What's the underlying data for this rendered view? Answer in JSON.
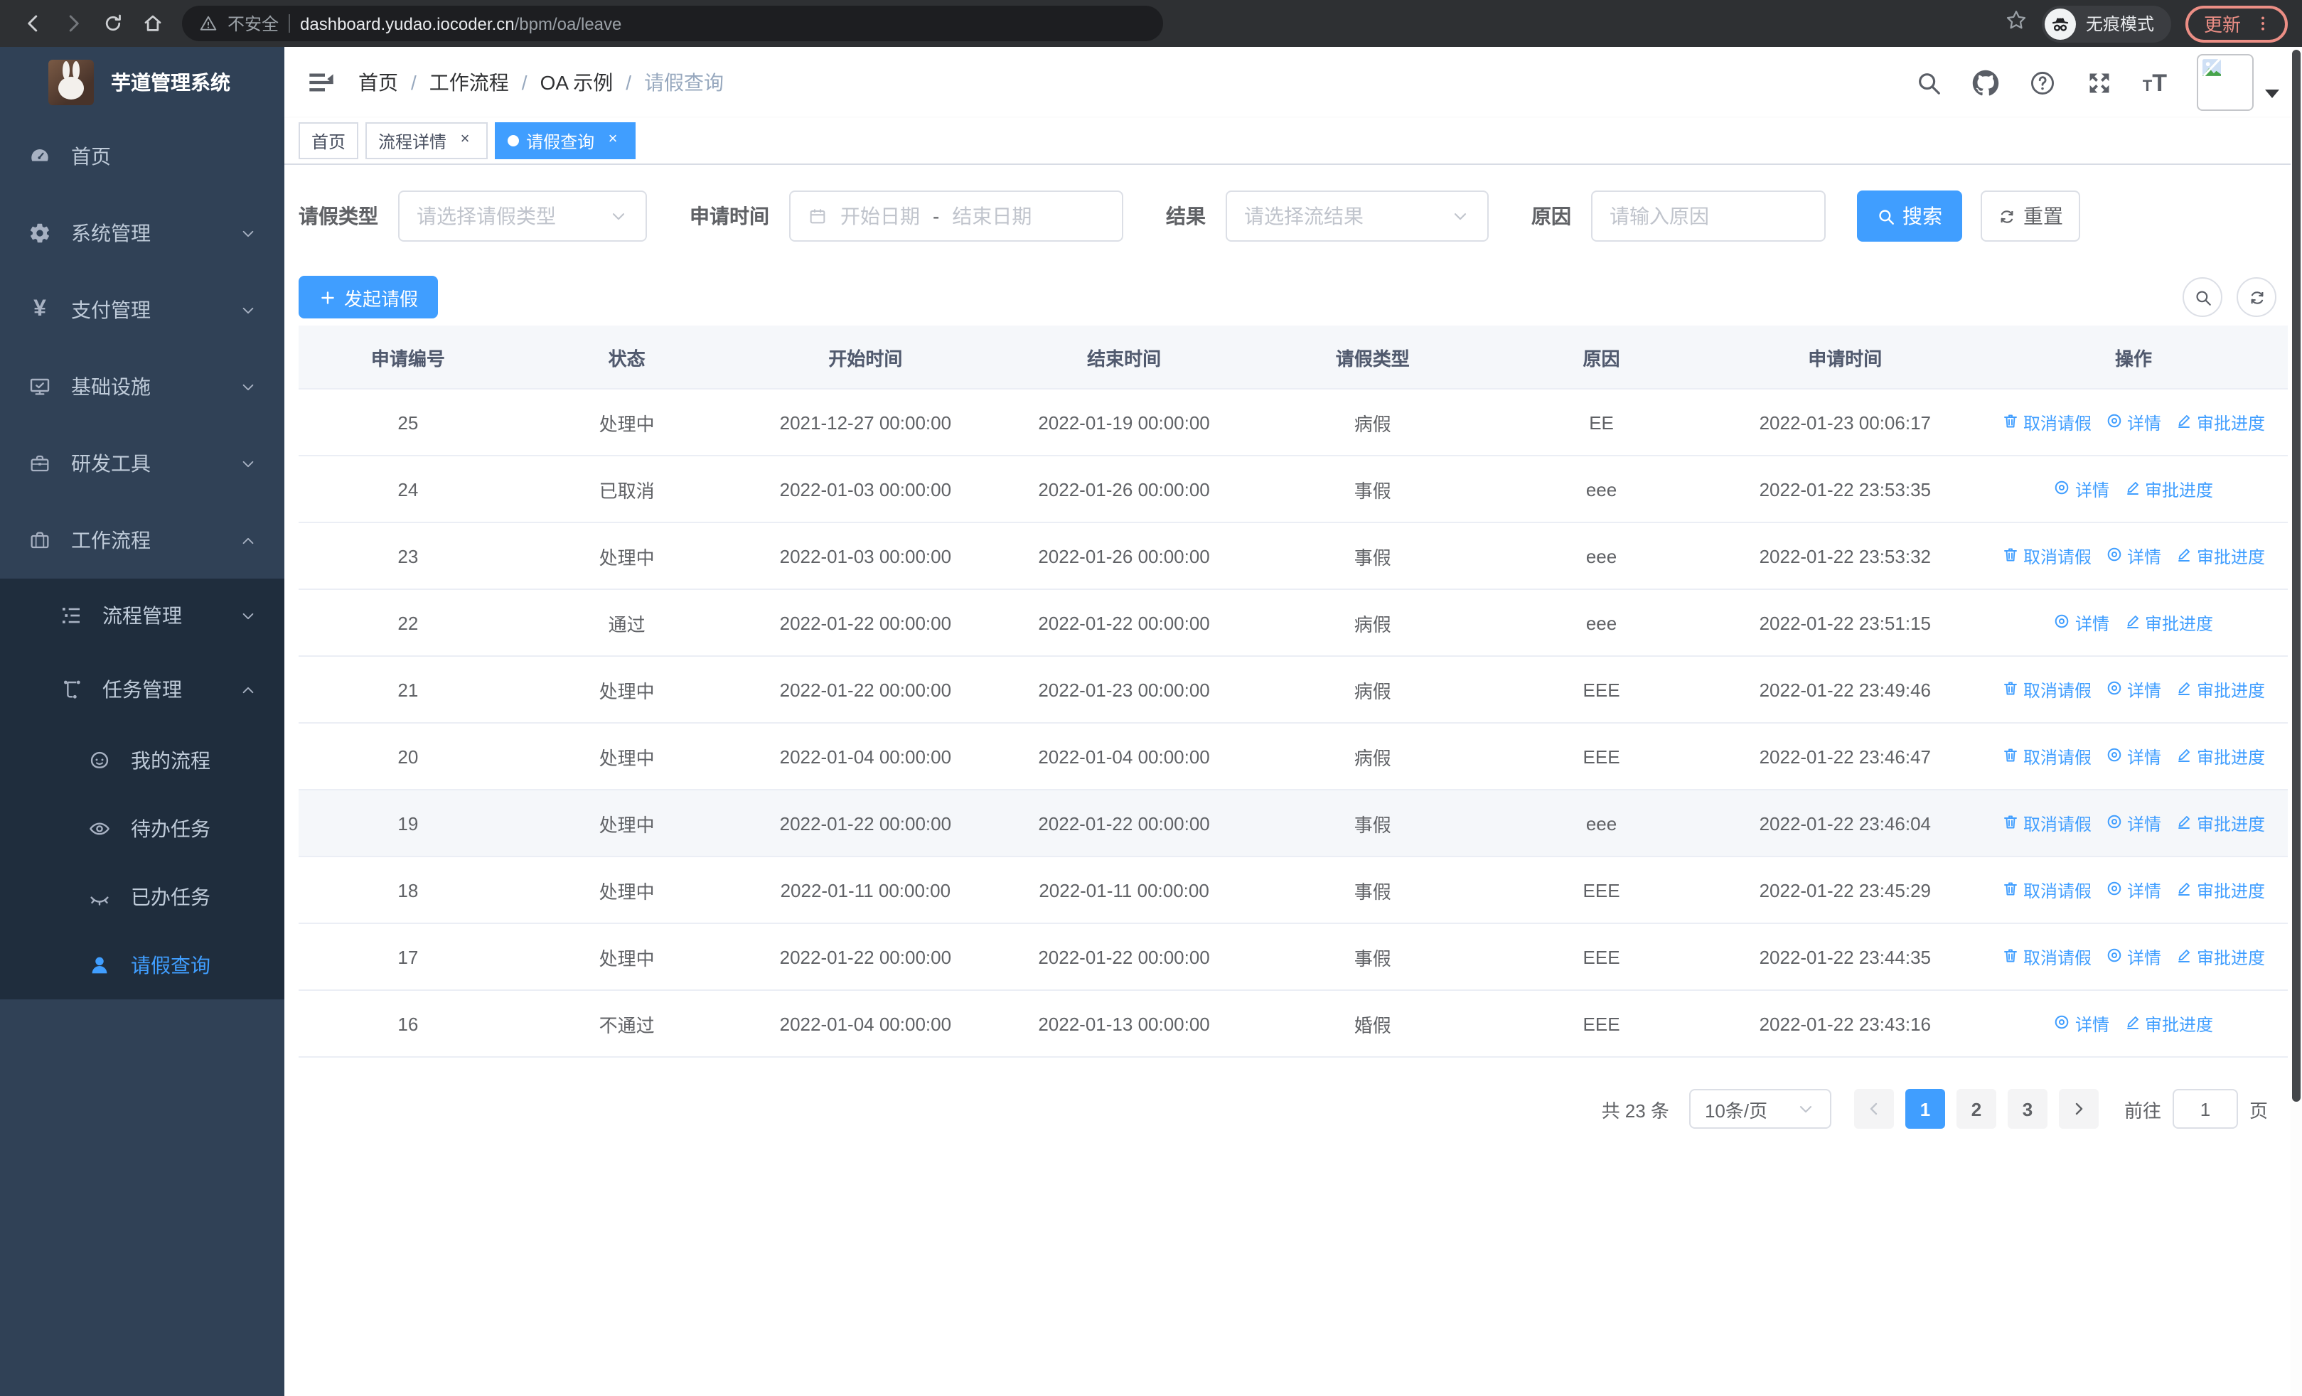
{
  "colors": {
    "accent": "#409eff",
    "sidebar_bg": "#304156",
    "submenu_bg": "#1f2d3d",
    "sidebar_text": "#bfcbd9",
    "table_header_bg": "#f5f7fa",
    "table_border": "#ebeef5",
    "update_accent": "#ec8e85"
  },
  "browser": {
    "security_label": "不安全",
    "url_domain": "dashboard.yudao.iocoder.cn",
    "url_path": "/bpm/oa/leave",
    "incognito_label": "无痕模式",
    "update_label": "更新"
  },
  "sidebar": {
    "title": "芋道管理系统",
    "items": [
      {
        "key": "home",
        "label": "首页",
        "icon": "dashboard-icon",
        "level": 1
      },
      {
        "key": "system",
        "label": "系统管理",
        "icon": "gear-icon",
        "level": 1,
        "arrow": "down"
      },
      {
        "key": "payment",
        "label": "支付管理",
        "icon": "yen-icon",
        "level": 1,
        "arrow": "down"
      },
      {
        "key": "infra",
        "label": "基础设施",
        "icon": "monitor-icon",
        "level": 1,
        "arrow": "down"
      },
      {
        "key": "devtools",
        "label": "研发工具",
        "icon": "toolbox-icon",
        "level": 1,
        "arrow": "down"
      },
      {
        "key": "workflow",
        "label": "工作流程",
        "icon": "briefcase-icon",
        "level": 1,
        "arrow": "up"
      },
      {
        "key": "process-mgmt",
        "label": "流程管理",
        "icon": "tree-icon",
        "level": 2,
        "arrow": "down"
      },
      {
        "key": "task-mgmt",
        "label": "任务管理",
        "icon": "flow-icon",
        "level": 2,
        "arrow": "up"
      },
      {
        "key": "my-process",
        "label": "我的流程",
        "icon": "face-icon",
        "level": 3
      },
      {
        "key": "todo-task",
        "label": "待办任务",
        "icon": "eye-open-icon",
        "level": 3
      },
      {
        "key": "done-task",
        "label": "已办任务",
        "icon": "eye-closed-icon",
        "level": 3
      },
      {
        "key": "leave-query",
        "label": "请假查询",
        "icon": "user-icon",
        "level": 3,
        "active": true
      }
    ]
  },
  "navbar": {
    "breadcrumb": [
      "首页",
      "工作流程",
      "OA 示例",
      "请假查询"
    ]
  },
  "tabs": [
    {
      "key": "home",
      "label": "首页",
      "closable": false,
      "active": false
    },
    {
      "key": "process-detail",
      "label": "流程详情",
      "closable": true,
      "active": false
    },
    {
      "key": "leave-query",
      "label": "请假查询",
      "closable": true,
      "active": true
    }
  ],
  "filters": {
    "leave_type": {
      "label": "请假类型",
      "placeholder": "请选择请假类型"
    },
    "apply_time": {
      "label": "申请时间",
      "start_placeholder": "开始日期",
      "separator": "-",
      "end_placeholder": "结束日期"
    },
    "result": {
      "label": "结果",
      "placeholder": "请选择流结果"
    },
    "reason": {
      "label": "原因",
      "placeholder": "请输入原因"
    },
    "search_label": "搜索",
    "reset_label": "重置"
  },
  "toolbar": {
    "create_label": "发起请假"
  },
  "table": {
    "headers": [
      "申请编号",
      "状态",
      "开始时间",
      "结束时间",
      "请假类型",
      "原因",
      "申请时间",
      "操作"
    ],
    "action_labels": {
      "cancel": "取消请假",
      "detail": "详情",
      "progress": "审批进度"
    },
    "rows": [
      {
        "id": "25",
        "status": "处理中",
        "start_time": "2021-12-27 00:00:00",
        "end_time": "2022-01-19 00:00:00",
        "leave_type": "病假",
        "reason": "EE",
        "apply_time": "2022-01-23 00:06:17",
        "actions": [
          "cancel",
          "detail",
          "progress"
        ],
        "hover": false
      },
      {
        "id": "24",
        "status": "已取消",
        "start_time": "2022-01-03 00:00:00",
        "end_time": "2022-01-26 00:00:00",
        "leave_type": "事假",
        "reason": "eee",
        "apply_time": "2022-01-22 23:53:35",
        "actions": [
          "detail",
          "progress"
        ],
        "hover": false
      },
      {
        "id": "23",
        "status": "处理中",
        "start_time": "2022-01-03 00:00:00",
        "end_time": "2022-01-26 00:00:00",
        "leave_type": "事假",
        "reason": "eee",
        "apply_time": "2022-01-22 23:53:32",
        "actions": [
          "cancel",
          "detail",
          "progress"
        ],
        "hover": false
      },
      {
        "id": "22",
        "status": "通过",
        "start_time": "2022-01-22 00:00:00",
        "end_time": "2022-01-22 00:00:00",
        "leave_type": "病假",
        "reason": "eee",
        "apply_time": "2022-01-22 23:51:15",
        "actions": [
          "detail",
          "progress"
        ],
        "hover": false
      },
      {
        "id": "21",
        "status": "处理中",
        "start_time": "2022-01-22 00:00:00",
        "end_time": "2022-01-23 00:00:00",
        "leave_type": "病假",
        "reason": "EEE",
        "apply_time": "2022-01-22 23:49:46",
        "actions": [
          "cancel",
          "detail",
          "progress"
        ],
        "hover": false
      },
      {
        "id": "20",
        "status": "处理中",
        "start_time": "2022-01-04 00:00:00",
        "end_time": "2022-01-04 00:00:00",
        "leave_type": "病假",
        "reason": "EEE",
        "apply_time": "2022-01-22 23:46:47",
        "actions": [
          "cancel",
          "detail",
          "progress"
        ],
        "hover": false
      },
      {
        "id": "19",
        "status": "处理中",
        "start_time": "2022-01-22 00:00:00",
        "end_time": "2022-01-22 00:00:00",
        "leave_type": "事假",
        "reason": "eee",
        "apply_time": "2022-01-22 23:46:04",
        "actions": [
          "cancel",
          "detail",
          "progress"
        ],
        "hover": true
      },
      {
        "id": "18",
        "status": "处理中",
        "start_time": "2022-01-11 00:00:00",
        "end_time": "2022-01-11 00:00:00",
        "leave_type": "事假",
        "reason": "EEE",
        "apply_time": "2022-01-22 23:45:29",
        "actions": [
          "cancel",
          "detail",
          "progress"
        ],
        "hover": false
      },
      {
        "id": "17",
        "status": "处理中",
        "start_time": "2022-01-22 00:00:00",
        "end_time": "2022-01-22 00:00:00",
        "leave_type": "事假",
        "reason": "EEE",
        "apply_time": "2022-01-22 23:44:35",
        "actions": [
          "cancel",
          "detail",
          "progress"
        ],
        "hover": false
      },
      {
        "id": "16",
        "status": "不通过",
        "start_time": "2022-01-04 00:00:00",
        "end_time": "2022-01-13 00:00:00",
        "leave_type": "婚假",
        "reason": "EEE",
        "apply_time": "2022-01-22 23:43:16",
        "actions": [
          "detail",
          "progress"
        ],
        "hover": false
      }
    ]
  },
  "pagination": {
    "total_label": "共 23 条",
    "page_size": "10条/页",
    "pages": [
      "1",
      "2",
      "3"
    ],
    "current": "1",
    "goto_label": "前往",
    "goto_value": "1",
    "goto_suffix": "页"
  }
}
